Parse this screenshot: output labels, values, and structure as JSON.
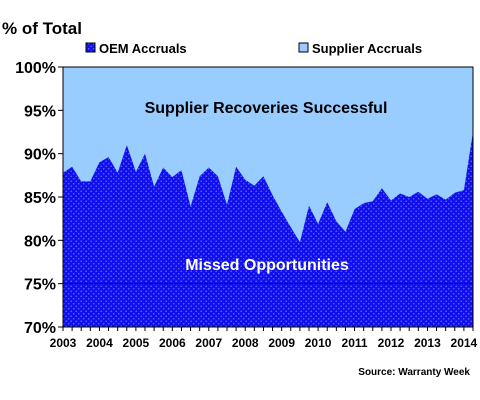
{
  "chart_data": {
    "type": "area",
    "title": "% of Total",
    "source": "Source: Warranty Week",
    "ylim": [
      70,
      100
    ],
    "xlim": [
      2003.0,
      2014.25
    ],
    "yticks": [
      "100%",
      "95%",
      "90%",
      "85%",
      "80%",
      "75%",
      "70%"
    ],
    "ytick_values": [
      100,
      95,
      90,
      85,
      80,
      75,
      70
    ],
    "xticks": [
      "2003",
      "2004",
      "2005",
      "2006",
      "2007",
      "2008",
      "2009",
      "2010",
      "2011",
      "2012",
      "2013",
      "2014"
    ],
    "legend_position": "top",
    "grid": false,
    "annotations": {
      "upper": "Supplier Recoveries  Successful",
      "lower": "Missed Opportunities"
    },
    "reference_line": {
      "y": 75,
      "color": "#0000cc"
    },
    "series": [
      {
        "name": "OEM Accruals",
        "color": "#1010ee",
        "pattern": "dots",
        "x": [
          2003.0,
          2003.25,
          2003.5,
          2003.75,
          2004.0,
          2004.25,
          2004.5,
          2004.75,
          2005.0,
          2005.25,
          2005.5,
          2005.75,
          2006.0,
          2006.25,
          2006.5,
          2006.75,
          2007.0,
          2007.25,
          2007.5,
          2007.75,
          2008.0,
          2008.25,
          2008.5,
          2008.75,
          2009.0,
          2009.25,
          2009.5,
          2009.75,
          2010.0,
          2010.25,
          2010.5,
          2010.75,
          2011.0,
          2011.25,
          2011.5,
          2011.75,
          2012.0,
          2012.25,
          2012.5,
          2012.75,
          2013.0,
          2013.25,
          2013.5,
          2013.75,
          2014.0,
          2014.25
        ],
        "values": [
          87.8,
          88.5,
          86.8,
          86.8,
          89.0,
          89.6,
          87.8,
          91.0,
          87.9,
          90.0,
          86.2,
          88.4,
          87.3,
          88.1,
          83.9,
          87.4,
          88.4,
          87.4,
          84.1,
          88.5,
          87.0,
          86.3,
          87.4,
          85.2,
          83.3,
          81.5,
          79.8,
          84.0,
          81.9,
          84.4,
          82.2,
          81.0,
          83.6,
          84.3,
          84.5,
          86.0,
          84.6,
          85.4,
          85.0,
          85.6,
          84.8,
          85.3,
          84.7,
          85.5,
          85.8,
          92.5
        ]
      },
      {
        "name": "Supplier Accruals",
        "color": "#99ccff"
      }
    ]
  }
}
